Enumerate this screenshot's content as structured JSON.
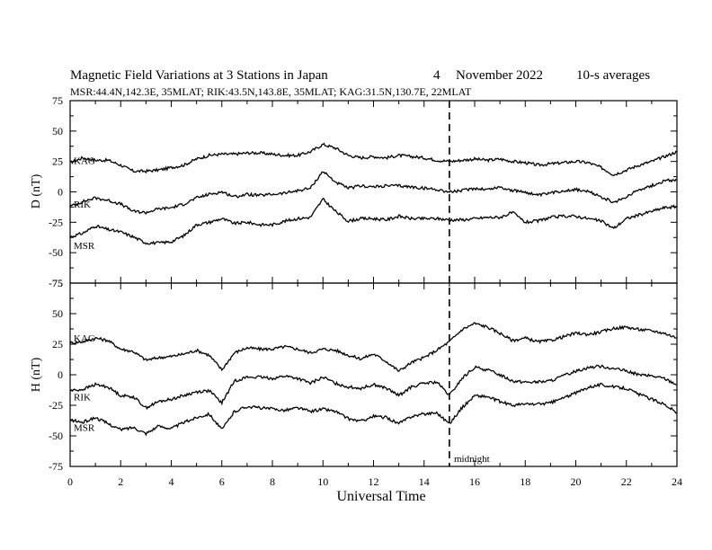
{
  "header": {
    "title": "Magnetic Field Variations at 3 Stations in Japan",
    "date_day": "4",
    "date_month": "November",
    "date_year": "2022",
    "averaging": "10-s averages",
    "subtitle": "MSR:44.4N,142.3E, 35MLAT;  RIK:43.5N,143.8E, 35MLAT;  KAG:31.5N,130.7E, 22MLAT"
  },
  "chart_data": [
    {
      "type": "line",
      "panel": "top",
      "ylabel": "D (nT)",
      "ylim": [
        -75,
        75
      ],
      "yticks": [
        -75,
        -50,
        -25,
        0,
        25,
        50,
        75
      ],
      "xlim": [
        0,
        24
      ],
      "xticks": [
        0,
        2,
        4,
        6,
        8,
        10,
        12,
        14,
        16,
        18,
        20,
        22,
        24
      ],
      "x": [
        0,
        0.5,
        1,
        1.5,
        2,
        2.5,
        3,
        3.5,
        4,
        4.5,
        5,
        5.5,
        6,
        6.5,
        7,
        7.5,
        8,
        8.5,
        9,
        9.5,
        10,
        10.5,
        11,
        11.5,
        12,
        12.5,
        13,
        13.5,
        14,
        14.5,
        15,
        15.5,
        16,
        16.5,
        17,
        17.5,
        18,
        18.5,
        19,
        19.5,
        20,
        20.5,
        21,
        21.5,
        22,
        22.5,
        23,
        23.5,
        24
      ],
      "series": [
        {
          "name": "KAG",
          "values": [
            24,
            28,
            26,
            26,
            22,
            17,
            17,
            18,
            20,
            22,
            27,
            30,
            31,
            31,
            32,
            32,
            31,
            30,
            30,
            33,
            39,
            36,
            30,
            28,
            29,
            28,
            30,
            29,
            28,
            26,
            25,
            26,
            27,
            26,
            27,
            25,
            24,
            22,
            23,
            24,
            25,
            24,
            20,
            14,
            18,
            22,
            25,
            29,
            33
          ]
        },
        {
          "name": "RIK",
          "values": [
            -12,
            -8,
            -5,
            -7,
            -10,
            -16,
            -17,
            -14,
            -13,
            -10,
            -5,
            -2,
            0,
            -4,
            -2,
            -3,
            -2,
            -1,
            1,
            3,
            17,
            8,
            3,
            5,
            4,
            5,
            5,
            4,
            3,
            2,
            0,
            1,
            3,
            2,
            4,
            1,
            0,
            -3,
            -1,
            1,
            2,
            0,
            -4,
            -9,
            -4,
            2,
            5,
            9,
            10
          ]
        },
        {
          "name": "MSR",
          "values": [
            -37,
            -34,
            -28,
            -31,
            -33,
            -37,
            -42,
            -42,
            -41,
            -36,
            -27,
            -25,
            -22,
            -26,
            -25,
            -27,
            -27,
            -24,
            -22,
            -21,
            -6,
            -16,
            -24,
            -22,
            -22,
            -23,
            -20,
            -22,
            -22,
            -22,
            -23,
            -23,
            -22,
            -21,
            -21,
            -17,
            -25,
            -24,
            -21,
            -20,
            -20,
            -22,
            -24,
            -30,
            -22,
            -19,
            -16,
            -13,
            -12
          ]
        }
      ],
      "series_label_values": [
        {
          "name": "KAG",
          "value": 26
        },
        {
          "name": "RIK",
          "value": -10
        },
        {
          "name": "MSR",
          "value": -44
        }
      ]
    },
    {
      "type": "line",
      "panel": "bottom",
      "ylabel": "H (nT)",
      "ylim": [
        -75,
        75
      ],
      "yticks": [
        -75,
        -50,
        -25,
        0,
        25,
        50,
        75
      ],
      "xlim": [
        0,
        24
      ],
      "xticks": [
        0,
        2,
        4,
        6,
        8,
        10,
        12,
        14,
        16,
        18,
        20,
        22,
        24
      ],
      "xlabel": "Universal Time",
      "x": [
        0,
        0.5,
        1,
        1.5,
        2,
        2.5,
        3,
        3.5,
        4,
        4.5,
        5,
        5.5,
        6,
        6.5,
        7,
        7.5,
        8,
        8.5,
        9,
        9.5,
        10,
        10.5,
        11,
        11.5,
        12,
        12.5,
        13,
        13.5,
        14,
        14.5,
        15,
        15.5,
        16,
        16.5,
        17,
        17.5,
        18,
        18.5,
        19,
        19.5,
        20,
        20.5,
        21,
        21.5,
        22,
        22.5,
        23,
        23.5,
        24
      ],
      "series": [
        {
          "name": "KAG",
          "values": [
            26,
            27,
            30,
            28,
            21,
            19,
            12,
            14,
            15,
            17,
            20,
            16,
            4,
            18,
            22,
            21,
            21,
            23,
            21,
            18,
            21,
            20,
            16,
            13,
            17,
            11,
            3,
            10,
            14,
            20,
            27,
            37,
            42,
            39,
            34,
            28,
            30,
            27,
            28,
            31,
            34,
            33,
            35,
            38,
            39,
            37,
            36,
            34,
            30
          ]
        },
        {
          "name": "RIK",
          "values": [
            -13,
            -12,
            -8,
            -10,
            -17,
            -18,
            -27,
            -22,
            -20,
            -17,
            -14,
            -13,
            -23,
            -5,
            -2,
            -2,
            -3,
            -1,
            -3,
            -7,
            -2,
            -7,
            -10,
            -11,
            -8,
            -11,
            -17,
            -10,
            -7,
            -6,
            -17,
            -3,
            6,
            4,
            0,
            -5,
            -6,
            -6,
            -5,
            -1,
            3,
            6,
            7,
            5,
            3,
            0,
            -1,
            -3,
            -8
          ]
        },
        {
          "name": "MSR",
          "values": [
            -37,
            -39,
            -35,
            -40,
            -45,
            -43,
            -48,
            -42,
            -44,
            -39,
            -35,
            -32,
            -45,
            -30,
            -26,
            -27,
            -28,
            -29,
            -27,
            -30,
            -28,
            -30,
            -36,
            -38,
            -34,
            -35,
            -40,
            -34,
            -32,
            -31,
            -40,
            -27,
            -17,
            -18,
            -22,
            -25,
            -24,
            -24,
            -23,
            -19,
            -15,
            -10,
            -8,
            -10,
            -11,
            -16,
            -20,
            -24,
            -31
          ]
        }
      ],
      "series_label_values": [
        {
          "name": "KAG",
          "value": 30
        },
        {
          "name": "RIK",
          "value": -18
        },
        {
          "name": "MSR",
          "value": -43
        }
      ],
      "annotation": {
        "text": "midnight",
        "x": 15
      }
    }
  ],
  "midnight_x": 15
}
